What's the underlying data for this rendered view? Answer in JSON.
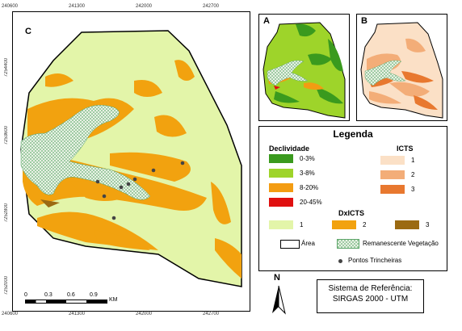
{
  "main_map": {
    "letter": "C",
    "top_ticks": [
      "240600",
      "241300",
      "242000",
      "242700"
    ],
    "left_ticks": [
      "7254400",
      "7253600",
      "7252800",
      "7252000"
    ],
    "bottom_ticks": [
      "240600",
      "241300",
      "242000",
      "242700"
    ],
    "scale": {
      "labels": [
        "0",
        "0.3",
        "0.6",
        "0.9"
      ],
      "unit": "KM"
    }
  },
  "inset_a": {
    "letter": "A"
  },
  "inset_b": {
    "letter": "B"
  },
  "legend": {
    "title": "Legenda",
    "declividade": {
      "heading": "Declividade",
      "items": [
        {
          "label": "0-3%",
          "color": "#3a9a1e"
        },
        {
          "label": "3-8%",
          "color": "#9ed42a"
        },
        {
          "label": "8-20%",
          "color": "#f39c12"
        },
        {
          "label": "20-45%",
          "color": "#e01010"
        }
      ]
    },
    "icts": {
      "heading": "ICTS",
      "items": [
        {
          "label": "1",
          "color": "#fbe0c6"
        },
        {
          "label": "2",
          "color": "#f3ad78"
        },
        {
          "label": "3",
          "color": "#e8782f"
        }
      ]
    },
    "dxicts": {
      "heading": "DxICTS",
      "items": [
        {
          "label": "1",
          "color": "#e3f5a9"
        },
        {
          "label": "2",
          "color": "#f2a20f"
        },
        {
          "label": "3",
          "color": "#9b6a12"
        }
      ]
    },
    "area_label": "Área",
    "veg_label": "Remanescente Vegetação",
    "points_label": "Pontos Trincheiras"
  },
  "north_label": "N",
  "reference_system": {
    "line1": "Sistema de Referência:",
    "line2": "SIRGAS 2000 - UTM"
  }
}
